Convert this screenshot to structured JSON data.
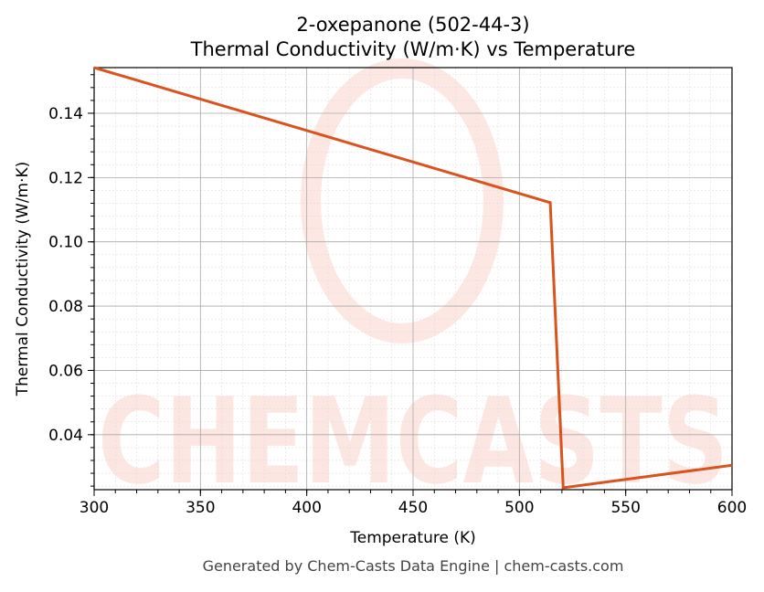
{
  "chart_data": {
    "type": "line",
    "title": "2-oxepanone (502-44-3)",
    "subtitle": "Thermal Conductivity (W/m·K) vs Temperature",
    "xlabel": "Temperature (K)",
    "ylabel": "Thermal Conductivity (W/m·K)",
    "xlim": [
      300,
      600
    ],
    "ylim": [
      0.0229,
      0.1542
    ],
    "xticks": [
      300,
      350,
      400,
      450,
      500,
      550,
      600
    ],
    "yticks": [
      0.04,
      0.06,
      0.08,
      0.1,
      0.12,
      0.14
    ],
    "xtick_labels": [
      "300",
      "350",
      "400",
      "450",
      "500",
      "550",
      "600"
    ],
    "ytick_labels": [
      "0.04",
      "0.06",
      "0.08",
      "0.10",
      "0.12",
      "0.14"
    ],
    "grid": true,
    "series": [
      {
        "color": "#d9531e",
        "x": [
          300,
          514.5,
          520.6,
          600
        ],
        "y": [
          0.1542,
          0.1122,
          0.0235,
          0.0305
        ]
      }
    ],
    "watermark": "CHEMCASTS",
    "footer": "Generated by Chem-Casts Data Engine | chem-casts.com"
  }
}
